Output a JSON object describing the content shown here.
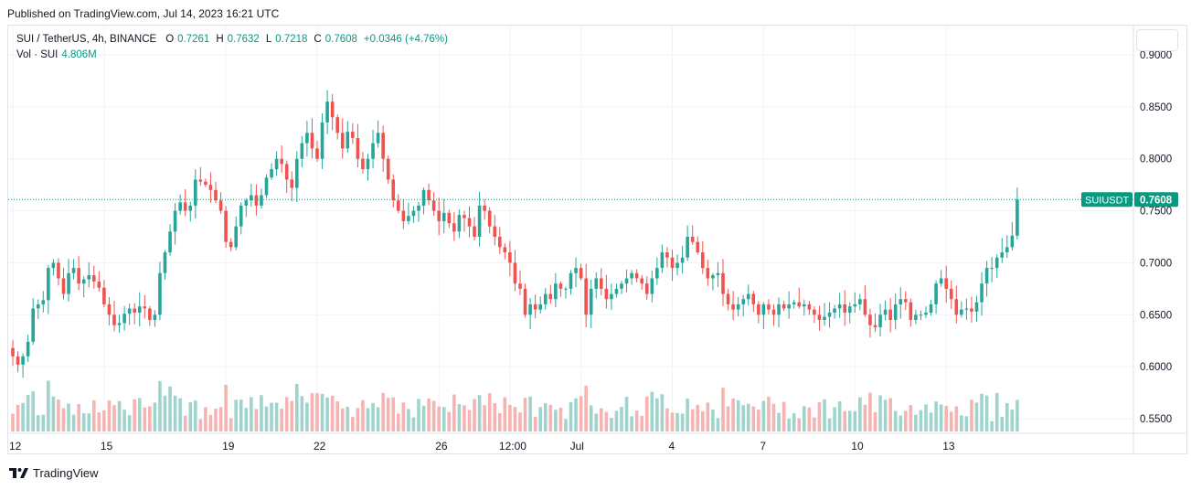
{
  "header": {
    "published": "Published on TradingView.com, Jul 14, 2023 16:21 UTC"
  },
  "legend": {
    "symbol": "SUI / TetherUS, 4h, BINANCE",
    "o_label": "O",
    "o_value": "0.7261",
    "h_label": "H",
    "h_value": "0.7632",
    "l_label": "L",
    "l_value": "0.7218",
    "c_label": "C",
    "c_value": "0.7608",
    "change": "+0.0346 (+4.76%)",
    "vol_label": "Vol · SUI",
    "vol_value": "4.806M"
  },
  "price_tag": {
    "symbol": "SUIUSDT",
    "price": "0.7608"
  },
  "footer": {
    "brand": "TradingView"
  },
  "colors": {
    "up": "#26a69a",
    "down": "#ef5350",
    "vol_up": "#9fd4cd",
    "vol_down": "#f5b3b1",
    "grid": "#f0f3fa",
    "last_price": "#089981"
  },
  "chart_data": {
    "type": "candlestick",
    "title": "SUI / TetherUS, 4h, BINANCE",
    "ylim": [
      0.535,
      0.915
    ],
    "y_ticks": [
      "0.9000",
      "0.8500",
      "0.8000",
      "0.7500",
      "0.7000",
      "0.6500",
      "0.6000",
      "0.5500"
    ],
    "x_ticks": [
      {
        "label": "12",
        "index": 0
      },
      {
        "label": "15",
        "index": 18
      },
      {
        "label": "19",
        "index": 42
      },
      {
        "label": "22",
        "index": 60
      },
      {
        "label": "26",
        "index": 84
      },
      {
        "label": "12:00",
        "index": 98
      },
      {
        "label": "Jul",
        "index": 112
      },
      {
        "label": "4",
        "index": 130
      },
      {
        "label": "7",
        "index": 148
      },
      {
        "label": "10",
        "index": 166
      },
      {
        "label": "13",
        "index": 184
      }
    ],
    "last_price": 0.7608,
    "series": [
      {
        "name": "SUIUSDT",
        "values": [
          0.61,
          0.602,
          0.61,
          0.624,
          0.656,
          0.66,
          0.664,
          0.695,
          0.7,
          0.685,
          0.67,
          0.69,
          0.695,
          0.68,
          0.684,
          0.688,
          0.682,
          0.676,
          0.66,
          0.65,
          0.64,
          0.642,
          0.651,
          0.656,
          0.652,
          0.658,
          0.656,
          0.645,
          0.65,
          0.69,
          0.71,
          0.73,
          0.75,
          0.758,
          0.75,
          0.755,
          0.78,
          0.778,
          0.775,
          0.77,
          0.76,
          0.75,
          0.72,
          0.715,
          0.735,
          0.755,
          0.76,
          0.765,
          0.755,
          0.765,
          0.782,
          0.79,
          0.8,
          0.795,
          0.78,
          0.772,
          0.8,
          0.815,
          0.825,
          0.81,
          0.8,
          0.835,
          0.855,
          0.84,
          0.825,
          0.81,
          0.826,
          0.82,
          0.8,
          0.79,
          0.8,
          0.815,
          0.825,
          0.8,
          0.78,
          0.76,
          0.75,
          0.74,
          0.745,
          0.75,
          0.755,
          0.77,
          0.76,
          0.75,
          0.74,
          0.748,
          0.738,
          0.73,
          0.746,
          0.743,
          0.735,
          0.725,
          0.755,
          0.75,
          0.735,
          0.725,
          0.715,
          0.71,
          0.7,
          0.68,
          0.675,
          0.65,
          0.66,
          0.655,
          0.66,
          0.67,
          0.665,
          0.68,
          0.675,
          0.675,
          0.69,
          0.695,
          0.685,
          0.65,
          0.675,
          0.685,
          0.675,
          0.665,
          0.67,
          0.675,
          0.68,
          0.685,
          0.69,
          0.685,
          0.68,
          0.67,
          0.685,
          0.695,
          0.71,
          0.705,
          0.695,
          0.7,
          0.705,
          0.725,
          0.72,
          0.71,
          0.695,
          0.685,
          0.688,
          0.69,
          0.67,
          0.66,
          0.655,
          0.66,
          0.665,
          0.67,
          0.66,
          0.65,
          0.66,
          0.655,
          0.65,
          0.66,
          0.656,
          0.66,
          0.662,
          0.658,
          0.66,
          0.655,
          0.65,
          0.645,
          0.648,
          0.652,
          0.656,
          0.66,
          0.652,
          0.658,
          0.66,
          0.665,
          0.65,
          0.64,
          0.638,
          0.65,
          0.655,
          0.645,
          0.66,
          0.665,
          0.662,
          0.645,
          0.65,
          0.65,
          0.652,
          0.66,
          0.68,
          0.685,
          0.675,
          0.665,
          0.65,
          0.655,
          0.656,
          0.653,
          0.662,
          0.68,
          0.695,
          0.695,
          0.705,
          0.71,
          0.715,
          0.7261,
          0.7608
        ]
      }
    ],
    "note_volume_visible": true
  }
}
